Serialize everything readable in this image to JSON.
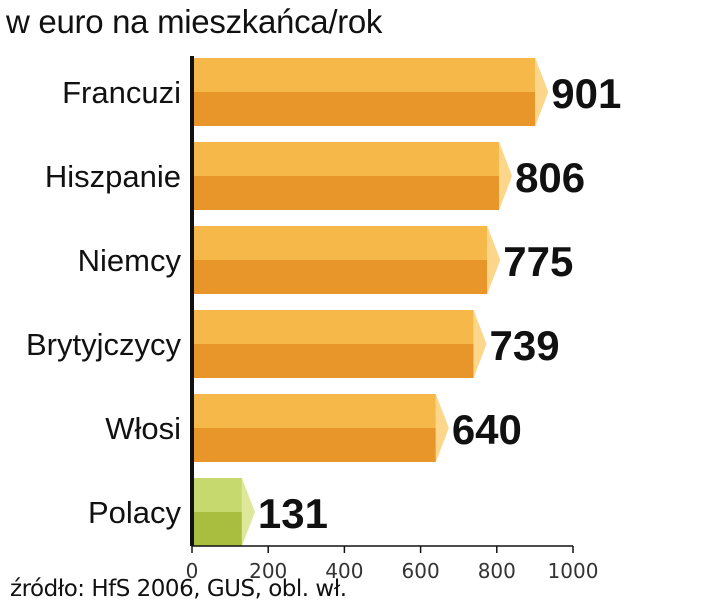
{
  "chart_data": {
    "type": "bar",
    "orientation": "horizontal",
    "title": "w euro na mieszkańca/rok",
    "categories": [
      "Francuzi",
      "Hiszpanie",
      "Niemcy",
      "Brytyjczycy",
      "Włosi",
      "Polacy"
    ],
    "values": [
      901,
      806,
      775,
      739,
      640,
      131
    ],
    "value_labels": [
      "901",
      "806",
      "775",
      "739",
      "640",
      "131"
    ],
    "xlim": [
      0,
      1000
    ],
    "xticks": [
      0,
      200,
      400,
      600,
      800,
      1000
    ],
    "xtick_labels": [
      "0",
      "200",
      "400",
      "600",
      "800",
      "1000"
    ],
    "grid": false,
    "colors": {
      "bar_top": "#f7b84a",
      "bar_bottom": "#e8952a",
      "bar_cap": "#fcd78b",
      "highlight_top": "#c6d96e",
      "highlight_bottom": "#a9bd3e",
      "highlight_cap": "#dde89a",
      "axis": "#111111"
    },
    "highlight_category": "Polacy"
  },
  "source": "źródło: HfS 2006, GUS, obl. wł."
}
